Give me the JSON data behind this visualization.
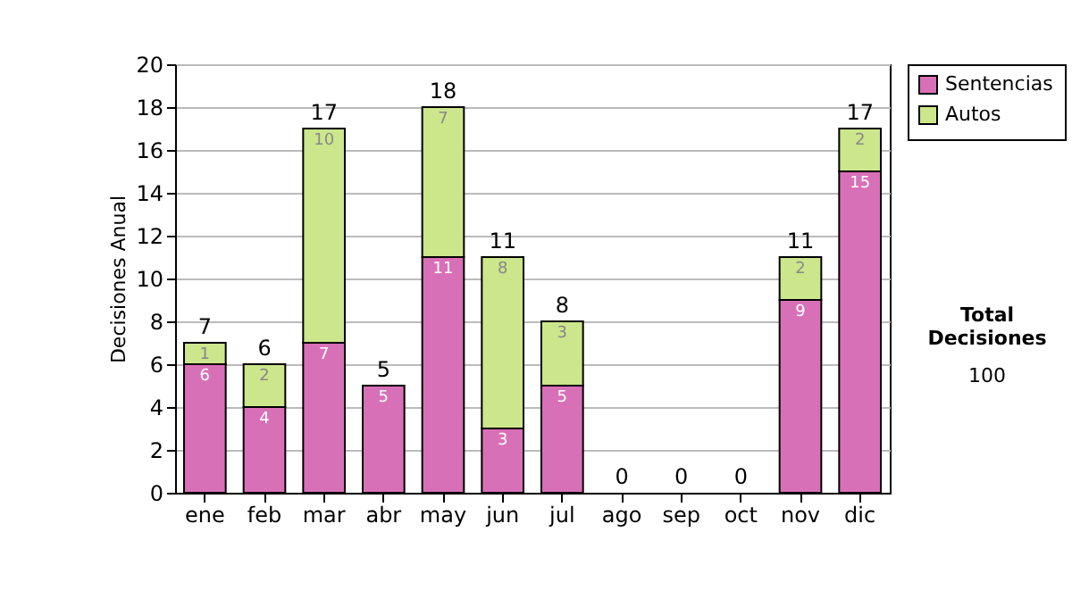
{
  "chart_data": {
    "type": "bar",
    "stacked": true,
    "ylabel": "Decisiones Anual",
    "categories": [
      "ene",
      "feb",
      "mar",
      "abr",
      "may",
      "jun",
      "jul",
      "ago",
      "sep",
      "oct",
      "nov",
      "dic"
    ],
    "series": [
      {
        "name": "Sentencias",
        "color": "#d870b8",
        "values": [
          6,
          4,
          7,
          5,
          11,
          3,
          5,
          0,
          0,
          0,
          9,
          15
        ],
        "value_labels": [
          "6",
          "4",
          "7",
          "5",
          "11",
          "3",
          "5",
          null,
          null,
          null,
          "9",
          "15"
        ]
      },
      {
        "name": "Autos",
        "color": "#cce68c",
        "values": [
          1,
          2,
          10,
          0,
          7,
          8,
          3,
          0,
          0,
          0,
          2,
          2
        ],
        "value_labels": [
          "1",
          "2",
          "10",
          null,
          "7",
          "8",
          "3",
          null,
          null,
          null,
          "2",
          "2"
        ]
      }
    ],
    "totals": [
      "7",
      "6",
      "17",
      "5",
      "18",
      "11",
      "8",
      "0",
      "0",
      "0",
      "11",
      "17"
    ],
    "ylim": [
      0,
      20
    ],
    "yticks": [
      0,
      2,
      4,
      6,
      8,
      10,
      12,
      14,
      16,
      18,
      20
    ],
    "grid": "y",
    "legend": "right",
    "annotations": [
      "Total Decisiones",
      "100"
    ]
  }
}
